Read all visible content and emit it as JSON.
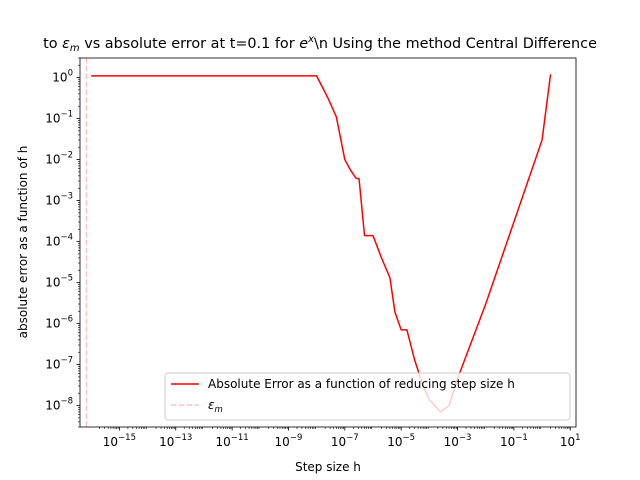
{
  "chart_data": {
    "type": "line",
    "title": "to ε_m vs absolute error at t=0.1 for e^x\\n Using the method Central Difference",
    "title_parts": {
      "lead": "to",
      "eps_symbol": "ε",
      "eps_sub": "m",
      "middle": "vs absolute error at t=0.1 for",
      "base": "e",
      "base_sup": "x",
      "tail": "\\n Using the method Central Difference"
    },
    "xlabel": "Step size h",
    "ylabel": "absolute error as a function of h",
    "x_scale": "log",
    "y_scale": "log",
    "xlim": [
      4e-17,
      16
    ],
    "ylim": [
      3e-09,
      3
    ],
    "x_ticks": [
      {
        "base": "10",
        "exp": "−15",
        "value": 1e-15
      },
      {
        "base": "10",
        "exp": "−13",
        "value": 1e-13
      },
      {
        "base": "10",
        "exp": "−11",
        "value": 1e-11
      },
      {
        "base": "10",
        "exp": "−9",
        "value": 1e-09
      },
      {
        "base": "10",
        "exp": "−7",
        "value": 1e-07
      },
      {
        "base": "10",
        "exp": "−5",
        "value": 1e-05
      },
      {
        "base": "10",
        "exp": "−3",
        "value": 0.001
      },
      {
        "base": "10",
        "exp": "−1",
        "value": 0.1
      },
      {
        "base": "10",
        "exp": "1",
        "value": 10
      }
    ],
    "y_ticks": [
      {
        "base": "10",
        "exp": "0",
        "value": 1
      },
      {
        "base": "10",
        "exp": "−1",
        "value": 0.1
      },
      {
        "base": "10",
        "exp": "−2",
        "value": 0.01
      },
      {
        "base": "10",
        "exp": "−3",
        "value": 0.001
      },
      {
        "base": "10",
        "exp": "−4",
        "value": 0.0001
      },
      {
        "base": "10",
        "exp": "−5",
        "value": 1e-05
      },
      {
        "base": "10",
        "exp": "−6",
        "value": 1e-06
      },
      {
        "base": "10",
        "exp": "−7",
        "value": 1e-07
      },
      {
        "base": "10",
        "exp": "−8",
        "value": 1e-08
      }
    ],
    "series": [
      {
        "name": "Absolute Error as a function of reducing step size h",
        "color": "#ff0000",
        "style": "solid",
        "x": [
          1e-16,
          1e-08,
          2.5e-08,
          5e-08,
          1e-07,
          1.6e-07,
          2.5e-07,
          3.2e-07,
          5e-07,
          1e-06,
          2e-06,
          4e-06,
          6e-06,
          1e-05,
          1.6e-05,
          3e-05,
          6e-05,
          0.0001,
          0.00025,
          0.0005,
          0.001,
          0.01,
          0.1,
          1,
          2
        ],
        "y": [
          1.1,
          1.1,
          0.32,
          0.11,
          0.01,
          0.0055,
          0.0035,
          0.0034,
          0.00014,
          0.00014,
          4e-05,
          1.3e-05,
          1.9e-06,
          7e-07,
          7e-07,
          1.3e-07,
          3e-08,
          1.4e-08,
          7e-09,
          1e-08,
          4.5e-08,
          3e-06,
          0.0003,
          0.03,
          1.2
        ]
      },
      {
        "name": "ε_m",
        "label_parts": {
          "symbol": "ε",
          "sub": "m"
        },
        "color": "#ffc0cb",
        "style": "dashed",
        "orientation": "vertical",
        "x_value": 6.8e-17
      }
    ],
    "legend_location": "lower right",
    "grid": false
  }
}
